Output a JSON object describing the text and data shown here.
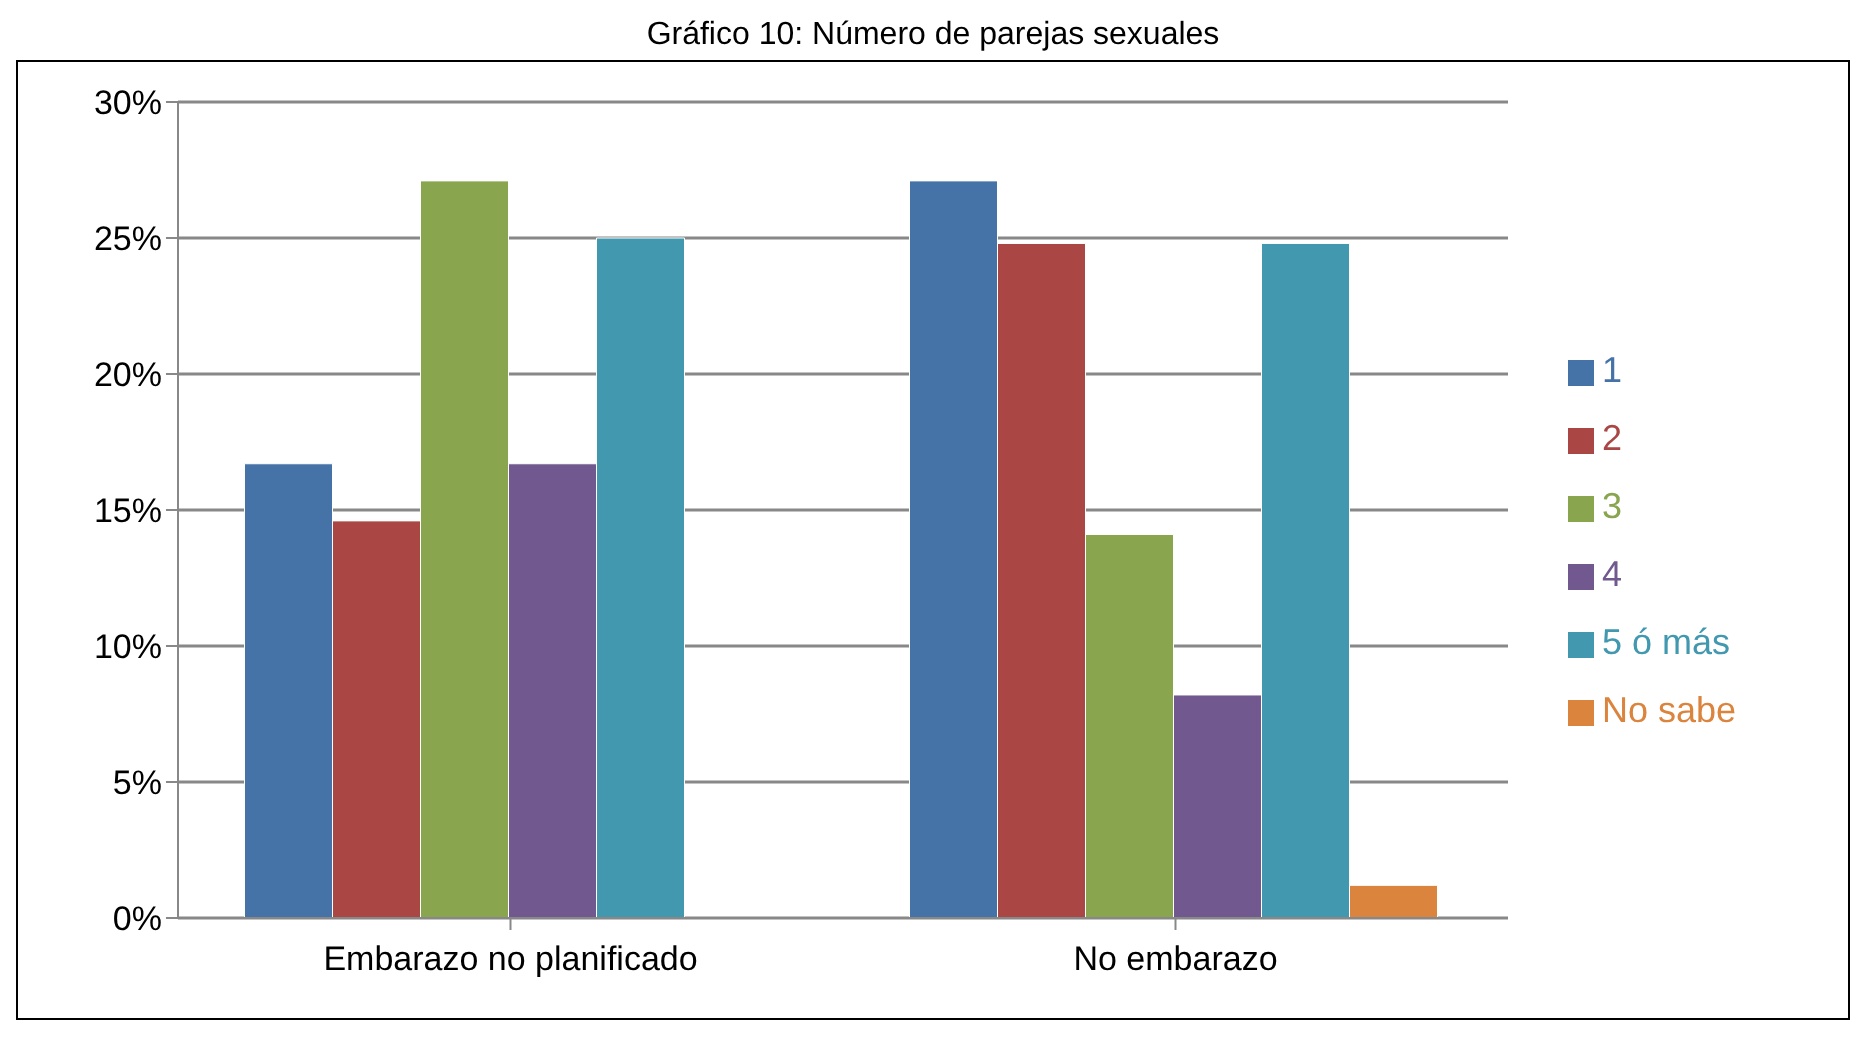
{
  "chart_data": {
    "type": "bar",
    "title": "Gráfico 10: Número de parejas sexuales",
    "categories": [
      "Embarazo no planificado",
      "No embarazo"
    ],
    "series": [
      {
        "name": "1",
        "color": "#4572a7",
        "values": [
          16.7,
          27.1
        ]
      },
      {
        "name": "2",
        "color": "#aa4643",
        "values": [
          14.6,
          24.8
        ]
      },
      {
        "name": "3",
        "color": "#89a54e",
        "values": [
          27.1,
          14.1
        ]
      },
      {
        "name": "4",
        "color": "#71588f",
        "values": [
          16.7,
          8.2
        ]
      },
      {
        "name": "5 ó más",
        "color": "#4198af",
        "values": [
          25,
          24.8
        ]
      },
      {
        "name": "No sabe",
        "color": "#db843d",
        "values": [
          null,
          1.2
        ]
      }
    ],
    "ylim": [
      0,
      30
    ],
    "yticks": [
      {
        "value": 0,
        "label": "0%"
      },
      {
        "value": 5,
        "label": "5%"
      },
      {
        "value": 10,
        "label": "10%"
      },
      {
        "value": 15,
        "label": "15%"
      },
      {
        "value": 20,
        "label": "20%"
      },
      {
        "value": 25,
        "label": "25%"
      },
      {
        "value": 30,
        "label": "30%"
      }
    ],
    "grid": "y",
    "legend": "right"
  }
}
